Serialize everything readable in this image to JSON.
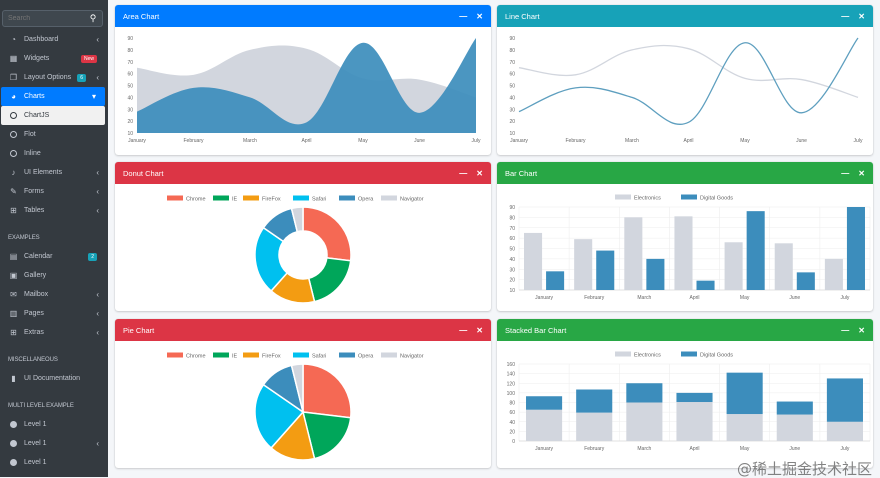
{
  "sidebar": {
    "search_placeholder": "Search",
    "items": [
      {
        "label": "Dashboard",
        "icon": "dashboard-icon",
        "arrow": true
      },
      {
        "label": "Widgets",
        "icon": "widgets-icon",
        "badge": "New",
        "badge_color": "#dc3545"
      },
      {
        "label": "Layout Options",
        "icon": "copy-icon",
        "badge": "6",
        "badge_color": "#17a2b8",
        "arrow": true
      },
      {
        "label": "Charts",
        "icon": "pie-chart-icon",
        "arrow": true,
        "active": true
      },
      {
        "label": "ChartJS",
        "icon": "circle-icon",
        "sub": true
      },
      {
        "label": "Flot",
        "icon": "circle-icon"
      },
      {
        "label": "Inline",
        "icon": "circle-icon"
      },
      {
        "label": "UI Elements",
        "icon": "tree-icon",
        "arrow": true
      },
      {
        "label": "Forms",
        "icon": "edit-icon",
        "arrow": true
      },
      {
        "label": "Tables",
        "icon": "table-icon",
        "arrow": true
      }
    ],
    "examples_header": "EXAMPLES",
    "examples": [
      {
        "label": "Calendar",
        "icon": "calendar-icon",
        "badge": "2",
        "badge_color": "#17a2b8"
      },
      {
        "label": "Gallery",
        "icon": "image-icon"
      },
      {
        "label": "Mailbox",
        "icon": "envelope-icon",
        "arrow": true
      },
      {
        "label": "Pages",
        "icon": "book-icon",
        "arrow": true
      },
      {
        "label": "Extras",
        "icon": "plus-square-icon",
        "arrow": true
      }
    ],
    "misc_header": "MISCELLANEOUS",
    "misc": [
      {
        "label": "UI Documentation",
        "icon": "file-icon"
      }
    ],
    "multi_header": "MULTI LEVEL EXAMPLE",
    "multi": [
      {
        "label": "Level 1",
        "icon": "dot-icon"
      },
      {
        "label": "Level 1",
        "icon": "dot-icon",
        "arrow": true
      },
      {
        "label": "Level 1",
        "icon": "dot-icon"
      }
    ]
  },
  "cards": {
    "area": {
      "title": "Area Chart",
      "color": "#007bff"
    },
    "line": {
      "title": "Line Chart",
      "color": "#17a2b8"
    },
    "donut": {
      "title": "Donut Chart",
      "color": "#dc3545"
    },
    "bar": {
      "title": "Bar Chart",
      "color": "#28a745"
    },
    "pie": {
      "title": "Pie Chart",
      "color": "#dc3545"
    },
    "stacked": {
      "title": "Stacked Bar Chart",
      "color": "#28a745"
    },
    "collapse_icon": "minus-icon",
    "close_icon": "times-icon"
  },
  "chart_data": [
    {
      "id": "area",
      "type": "area",
      "categories": [
        "January",
        "February",
        "March",
        "April",
        "May",
        "June",
        "July"
      ],
      "series": [
        {
          "name": "Digital Goods",
          "values": [
            28,
            48,
            40,
            19,
            86,
            27,
            90
          ],
          "color": "#3c8dbc"
        },
        {
          "name": "Electronics",
          "values": [
            65,
            59,
            80,
            81,
            56,
            55,
            40
          ],
          "color": "#d2d6de"
        }
      ],
      "ylim": [
        10,
        90
      ],
      "yticks": [
        10,
        20,
        30,
        40,
        50,
        60,
        70,
        80,
        90
      ],
      "legend": "none",
      "grid": false
    },
    {
      "id": "line",
      "type": "line",
      "categories": [
        "January",
        "February",
        "March",
        "April",
        "May",
        "June",
        "July"
      ],
      "series": [
        {
          "name": "Digital Goods",
          "values": [
            28,
            48,
            40,
            19,
            86,
            27,
            90
          ],
          "color": "#3c8dbc"
        },
        {
          "name": "Electronics",
          "values": [
            65,
            59,
            80,
            81,
            56,
            55,
            40
          ],
          "color": "#d2d6de"
        }
      ],
      "ylim": [
        10,
        90
      ],
      "yticks": [
        10,
        20,
        30,
        40,
        50,
        60,
        70,
        80,
        90
      ],
      "legend": "none",
      "grid": false
    },
    {
      "id": "donut",
      "type": "doughnut",
      "labels": [
        "Chrome",
        "IE",
        "FireFox",
        "Safari",
        "Opera",
        "Navigator"
      ],
      "values": [
        700,
        500,
        400,
        600,
        300,
        100
      ],
      "colors": [
        "#f56954",
        "#00a65a",
        "#f39c12",
        "#00c0ef",
        "#3c8dbc",
        "#d2d6de"
      ],
      "legend": "top"
    },
    {
      "id": "bar",
      "type": "bar",
      "categories": [
        "January",
        "February",
        "March",
        "April",
        "May",
        "June",
        "July"
      ],
      "series": [
        {
          "name": "Electronics",
          "values": [
            65,
            59,
            80,
            81,
            56,
            55,
            40
          ],
          "color": "#d2d6de"
        },
        {
          "name": "Digital Goods",
          "values": [
            28,
            48,
            40,
            19,
            86,
            27,
            90
          ],
          "color": "#3c8dbc"
        }
      ],
      "ylim": [
        10,
        90
      ],
      "yticks": [
        10,
        20,
        30,
        40,
        50,
        60,
        70,
        80,
        90
      ],
      "legend": "top",
      "grid": true
    },
    {
      "id": "pie",
      "type": "pie",
      "labels": [
        "Chrome",
        "IE",
        "FireFox",
        "Safari",
        "Opera",
        "Navigator"
      ],
      "values": [
        700,
        500,
        400,
        600,
        300,
        100
      ],
      "colors": [
        "#f56954",
        "#00a65a",
        "#f39c12",
        "#00c0ef",
        "#3c8dbc",
        "#d2d6de"
      ],
      "legend": "top"
    },
    {
      "id": "stacked",
      "type": "stacked-bar",
      "categories": [
        "January",
        "February",
        "March",
        "April",
        "May",
        "June",
        "July"
      ],
      "series": [
        {
          "name": "Electronics",
          "values": [
            65,
            59,
            80,
            81,
            56,
            55,
            40
          ],
          "color": "#d2d6de"
        },
        {
          "name": "Digital Goods",
          "values": [
            28,
            48,
            40,
            19,
            86,
            27,
            90
          ],
          "color": "#3c8dbc"
        }
      ],
      "ylim": [
        0,
        160
      ],
      "yticks": [
        0,
        20,
        40,
        60,
        80,
        100,
        120,
        140,
        160
      ],
      "legend": "top",
      "grid": true
    }
  ],
  "watermark": "@稀土掘金技术社区"
}
